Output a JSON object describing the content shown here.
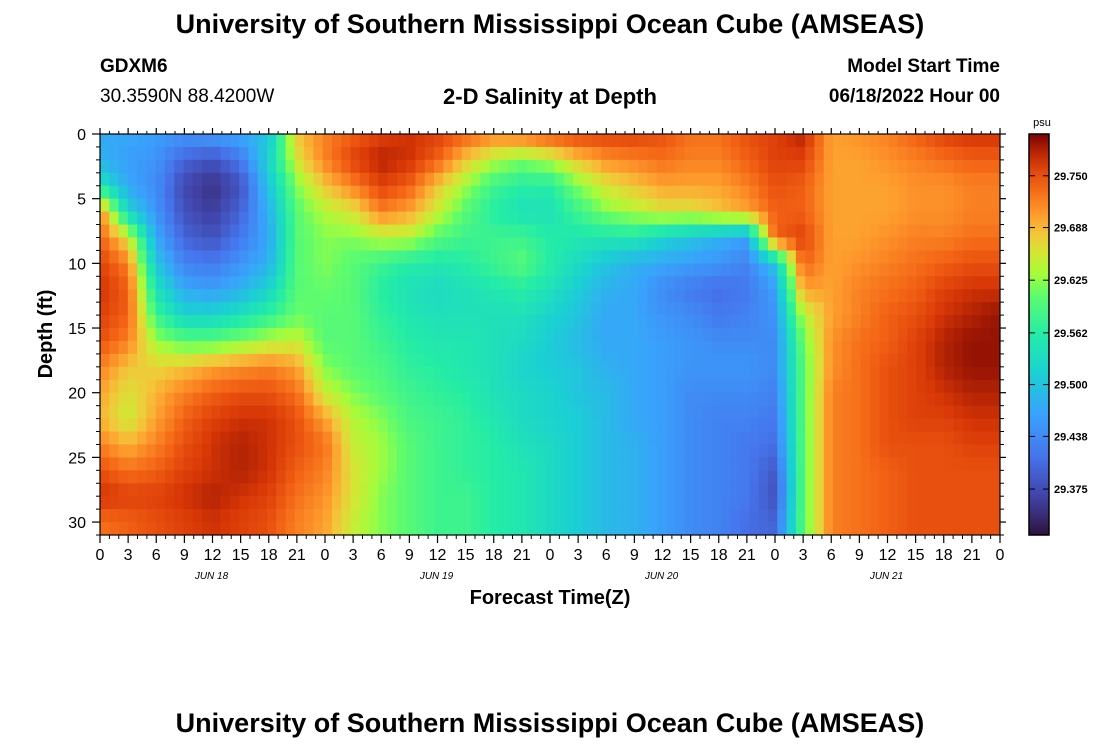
{
  "page": {
    "title_top": "University of Southern Mississippi Ocean Cube (AMSEAS)",
    "title_bottom": "University of Southern Mississippi Ocean Cube (AMSEAS)",
    "station": "GDXM6",
    "coords": "30.3590N  88.4200W",
    "subtitle": "2-D Salinity at Depth",
    "start_label": "Model Start Time",
    "start_value": "06/18/2022 Hour 00"
  },
  "chart_data": {
    "type": "heatmap",
    "title": "2-D Salinity at Depth",
    "xlabel": "Forecast Time(Z)",
    "ylabel": "Depth (ft)",
    "x_range_hours": [
      0,
      96
    ],
    "y_range_ft": [
      0,
      31
    ],
    "y_ticks": [
      "0",
      "5",
      "10",
      "15",
      "20",
      "25",
      "30"
    ],
    "x_tick_labels": [
      "0",
      "3",
      "6",
      "9",
      "12",
      "15",
      "18",
      "21",
      "0",
      "3",
      "6",
      "9",
      "12",
      "15",
      "18",
      "21",
      "0",
      "3",
      "6",
      "9",
      "12",
      "15",
      "18",
      "21",
      "0",
      "3",
      "6",
      "9",
      "12",
      "15",
      "18",
      "21",
      "0"
    ],
    "day_labels": [
      "JUN 18",
      "JUN 19",
      "JUN 20",
      "JUN 21"
    ],
    "colorbar": {
      "unit": "psu",
      "range": [
        29.32,
        29.8
      ],
      "tick_labels": [
        "29.750",
        "29.688",
        "29.625",
        "29.562",
        "29.500",
        "29.438",
        "29.375"
      ],
      "tick_values": [
        29.75,
        29.688,
        29.625,
        29.562,
        29.5,
        29.438,
        29.375
      ]
    },
    "grid": false,
    "time_hours": [
      0,
      3,
      6,
      9,
      12,
      15,
      18,
      21,
      24,
      27,
      30,
      33,
      36,
      39,
      42,
      45,
      48,
      51,
      54,
      57,
      60,
      63,
      66,
      69,
      72,
      75,
      78,
      81,
      84,
      87,
      90,
      93,
      96
    ],
    "depth_ft": [
      0,
      2,
      4,
      6,
      8,
      10,
      12,
      14,
      16,
      18,
      20,
      22,
      24,
      26,
      28,
      30
    ],
    "salinity_psu": [
      [
        29.47,
        29.48,
        29.55,
        29.72,
        29.74,
        29.76,
        29.77,
        29.76,
        29.75,
        29.72,
        29.7,
        29.69,
        29.72,
        29.75,
        29.77,
        29.73
      ],
      [
        29.47,
        29.46,
        29.47,
        29.52,
        29.66,
        29.72,
        29.74,
        29.74,
        29.72,
        29.68,
        29.66,
        29.65,
        29.69,
        29.73,
        29.76,
        29.74
      ],
      [
        29.46,
        29.45,
        29.44,
        29.45,
        29.47,
        29.5,
        29.54,
        29.58,
        29.63,
        29.67,
        29.69,
        29.7,
        29.72,
        29.74,
        29.76,
        29.75
      ],
      [
        29.45,
        29.4,
        29.37,
        29.38,
        29.4,
        29.43,
        29.47,
        29.52,
        29.6,
        29.68,
        29.72,
        29.74,
        29.75,
        29.76,
        29.77,
        29.76
      ],
      [
        29.46,
        29.38,
        29.35,
        29.36,
        29.38,
        29.42,
        29.46,
        29.52,
        29.6,
        29.7,
        29.74,
        29.76,
        29.77,
        29.77,
        29.78,
        29.77
      ],
      [
        29.47,
        29.42,
        29.38,
        29.4,
        29.42,
        29.45,
        29.48,
        29.54,
        29.62,
        29.71,
        29.75,
        29.77,
        29.78,
        29.78,
        29.77,
        29.76
      ],
      [
        29.5,
        29.52,
        29.5,
        29.48,
        29.47,
        29.48,
        29.52,
        29.57,
        29.64,
        29.72,
        29.75,
        29.77,
        29.77,
        29.77,
        29.76,
        29.75
      ],
      [
        29.68,
        29.66,
        29.62,
        29.6,
        29.6,
        29.6,
        29.6,
        29.61,
        29.65,
        29.7,
        29.73,
        29.75,
        29.75,
        29.74,
        29.73,
        29.72
      ],
      [
        29.72,
        29.72,
        29.68,
        29.64,
        29.62,
        29.62,
        29.61,
        29.6,
        29.6,
        29.62,
        29.65,
        29.7,
        29.73,
        29.72,
        29.71,
        29.7
      ],
      [
        29.74,
        29.76,
        29.72,
        29.66,
        29.62,
        29.6,
        29.6,
        29.6,
        29.6,
        29.6,
        29.62,
        29.64,
        29.65,
        29.66,
        29.66,
        29.65
      ],
      [
        29.76,
        29.78,
        29.76,
        29.72,
        29.64,
        29.58,
        29.56,
        29.57,
        29.58,
        29.59,
        29.6,
        29.62,
        29.63,
        29.63,
        29.62,
        29.62
      ],
      [
        29.77,
        29.77,
        29.74,
        29.7,
        29.64,
        29.56,
        29.54,
        29.55,
        29.56,
        29.57,
        29.58,
        29.59,
        29.6,
        29.6,
        29.6,
        29.6
      ],
      [
        29.76,
        29.74,
        29.68,
        29.65,
        29.6,
        29.55,
        29.53,
        29.54,
        29.55,
        29.56,
        29.57,
        29.58,
        29.58,
        29.58,
        29.58,
        29.58
      ],
      [
        29.74,
        29.68,
        29.63,
        29.6,
        29.58,
        29.56,
        29.54,
        29.54,
        29.55,
        29.55,
        29.56,
        29.57,
        29.57,
        29.57,
        29.58,
        29.58
      ],
      [
        29.72,
        29.64,
        29.58,
        29.56,
        29.58,
        29.58,
        29.55,
        29.54,
        29.54,
        29.54,
        29.54,
        29.55,
        29.56,
        29.56,
        29.56,
        29.56
      ],
      [
        29.73,
        29.62,
        29.56,
        29.54,
        29.58,
        29.6,
        29.56,
        29.54,
        29.53,
        29.52,
        29.53,
        29.53,
        29.54,
        29.55,
        29.55,
        29.55
      ],
      [
        29.75,
        29.64,
        29.56,
        29.54,
        29.56,
        29.56,
        29.54,
        29.52,
        29.51,
        29.51,
        29.52,
        29.52,
        29.53,
        29.53,
        29.53,
        29.53
      ],
      [
        29.76,
        29.68,
        29.62,
        29.58,
        29.55,
        29.53,
        29.51,
        29.5,
        29.49,
        29.5,
        29.5,
        29.51,
        29.51,
        29.51,
        29.51,
        29.51
      ],
      [
        29.76,
        29.71,
        29.66,
        29.62,
        29.55,
        29.5,
        29.48,
        29.47,
        29.47,
        29.48,
        29.49,
        29.49,
        29.49,
        29.49,
        29.49,
        29.49
      ],
      [
        29.76,
        29.72,
        29.68,
        29.64,
        29.55,
        29.48,
        29.47,
        29.47,
        29.47,
        29.47,
        29.47,
        29.47,
        29.48,
        29.48,
        29.48,
        29.48
      ],
      [
        29.75,
        29.73,
        29.7,
        29.66,
        29.52,
        29.47,
        29.44,
        29.45,
        29.46,
        29.46,
        29.46,
        29.46,
        29.46,
        29.46,
        29.46,
        29.46
      ],
      [
        29.73,
        29.72,
        29.7,
        29.66,
        29.5,
        29.46,
        29.42,
        29.44,
        29.45,
        29.45,
        29.44,
        29.44,
        29.44,
        29.44,
        29.44,
        29.44
      ],
      [
        29.73,
        29.72,
        29.7,
        29.68,
        29.48,
        29.45,
        29.41,
        29.42,
        29.44,
        29.45,
        29.44,
        29.43,
        29.43,
        29.43,
        29.43,
        29.43
      ],
      [
        29.75,
        29.74,
        29.72,
        29.7,
        29.46,
        29.43,
        29.42,
        29.43,
        29.44,
        29.45,
        29.44,
        29.43,
        29.42,
        29.42,
        29.42,
        29.41
      ],
      [
        29.76,
        29.76,
        29.75,
        29.74,
        29.74,
        29.5,
        29.46,
        29.45,
        29.44,
        29.44,
        29.43,
        29.42,
        29.41,
        29.39,
        29.38,
        29.4
      ],
      [
        29.78,
        29.76,
        29.74,
        29.74,
        29.76,
        29.74,
        29.7,
        29.64,
        29.61,
        29.6,
        29.6,
        29.6,
        29.6,
        29.6,
        29.6,
        29.6
      ],
      [
        29.7,
        29.7,
        29.7,
        29.7,
        29.7,
        29.7,
        29.7,
        29.7,
        29.71,
        29.71,
        29.72,
        29.72,
        29.72,
        29.72,
        29.72,
        29.72
      ],
      [
        29.71,
        29.7,
        29.7,
        29.7,
        29.7,
        29.71,
        29.72,
        29.72,
        29.73,
        29.73,
        29.73,
        29.73,
        29.73,
        29.73,
        29.73,
        29.73
      ],
      [
        29.72,
        29.71,
        29.7,
        29.7,
        29.71,
        29.72,
        29.73,
        29.74,
        29.74,
        29.75,
        29.75,
        29.75,
        29.75,
        29.74,
        29.74,
        29.74
      ],
      [
        29.74,
        29.72,
        29.71,
        29.71,
        29.72,
        29.73,
        29.74,
        29.75,
        29.76,
        29.76,
        29.76,
        29.76,
        29.75,
        29.75,
        29.75,
        29.75
      ],
      [
        29.76,
        29.73,
        29.71,
        29.71,
        29.72,
        29.74,
        29.76,
        29.77,
        29.78,
        29.78,
        29.77,
        29.76,
        29.75,
        29.75,
        29.75,
        29.75
      ],
      [
        29.77,
        29.74,
        29.72,
        29.72,
        29.73,
        29.75,
        29.77,
        29.78,
        29.79,
        29.79,
        29.78,
        29.77,
        29.76,
        29.75,
        29.75,
        29.75
      ],
      [
        29.77,
        29.74,
        29.72,
        29.72,
        29.73,
        29.75,
        29.77,
        29.79,
        29.79,
        29.79,
        29.78,
        29.77,
        29.76,
        29.75,
        29.75,
        29.75
      ]
    ]
  }
}
